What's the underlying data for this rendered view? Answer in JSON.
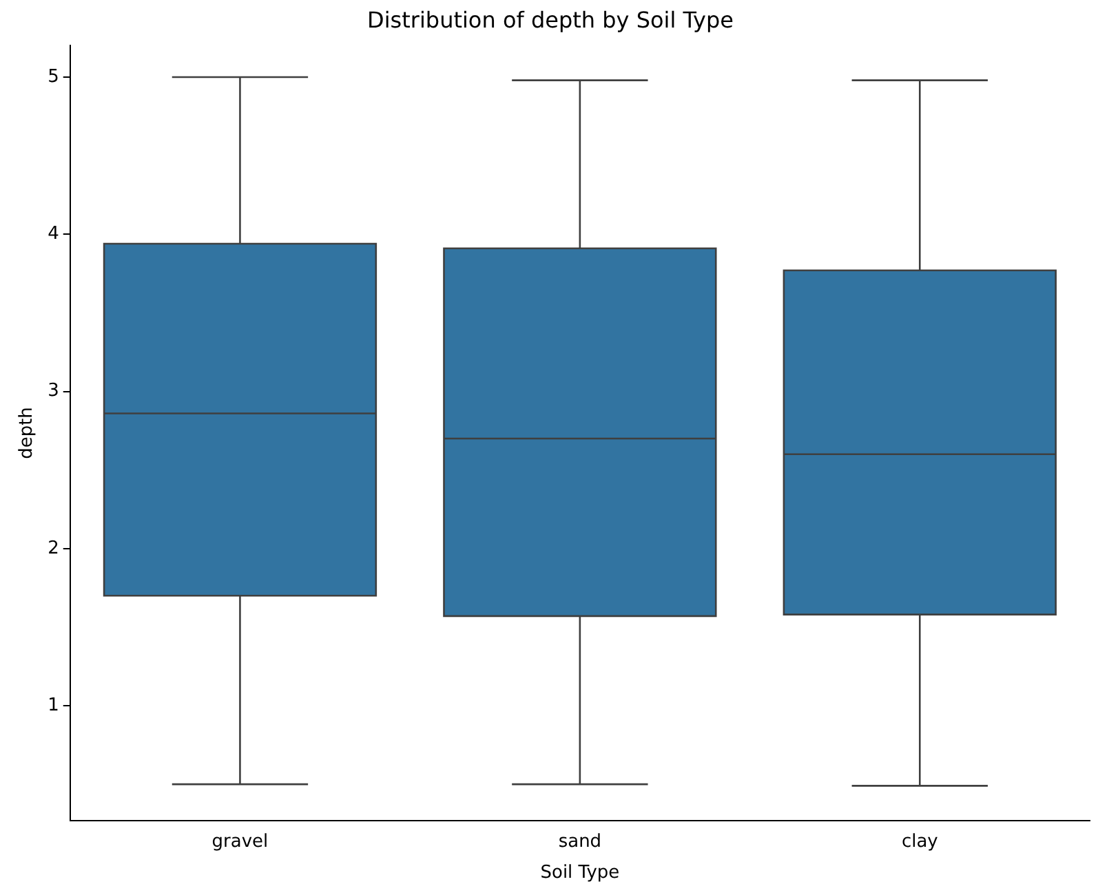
{
  "chart_data": {
    "type": "box",
    "title": "Distribution of depth by Soil Type",
    "xlabel": "Soil Type",
    "ylabel": "depth",
    "categories": [
      "gravel",
      "sand",
      "clay"
    ],
    "color": "#3274a1",
    "boxes": [
      {
        "low": 0.5,
        "q1": 1.7,
        "median": 2.86,
        "q3": 3.94,
        "high": 5.0
      },
      {
        "low": 0.5,
        "q1": 1.57,
        "median": 2.7,
        "q3": 3.91,
        "high": 4.98
      },
      {
        "low": 0.49,
        "q1": 1.58,
        "median": 2.6,
        "q3": 3.77,
        "high": 4.98
      }
    ],
    "ylim": [
      0.27,
      5.2
    ],
    "yticks": [
      1,
      2,
      3,
      4,
      5
    ],
    "grid": false,
    "legend": false
  }
}
